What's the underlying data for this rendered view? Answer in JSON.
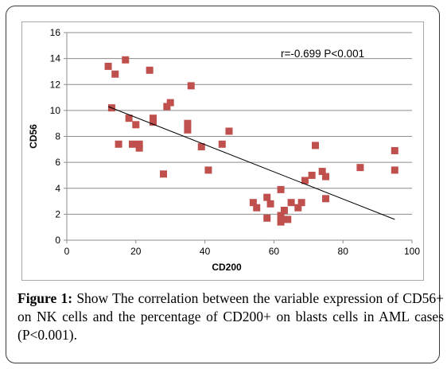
{
  "figure": {
    "caption_label": "Figure 1:",
    "caption_text": "Show The correlation between the variable expression of CD56+ on NK cells and the percentage of CD200+ on blasts cells in AML cases (P<0.001)."
  },
  "chart_data": {
    "type": "scatter",
    "xlabel": "CD200",
    "ylabel": "CD56",
    "xlim": [
      0,
      100
    ],
    "ylim": [
      0,
      16
    ],
    "x_ticks": [
      0,
      20,
      40,
      60,
      80,
      100
    ],
    "y_ticks": [
      0,
      2,
      4,
      6,
      8,
      10,
      12,
      14,
      16
    ],
    "grid": "horizontal",
    "annotation": "r=-0.699  P<0.001",
    "marker_color": "#c0504d",
    "trendline_color": "#000000",
    "trendline": {
      "x": [
        12,
        95
      ],
      "y": [
        10.3,
        1.6
      ]
    },
    "points": [
      {
        "x": 12,
        "y": 13.4
      },
      {
        "x": 13,
        "y": 10.2
      },
      {
        "x": 14,
        "y": 12.8
      },
      {
        "x": 15,
        "y": 7.4
      },
      {
        "x": 17,
        "y": 13.9
      },
      {
        "x": 18,
        "y": 9.4
      },
      {
        "x": 19,
        "y": 7.4
      },
      {
        "x": 20,
        "y": 8.9
      },
      {
        "x": 21,
        "y": 7.4
      },
      {
        "x": 21,
        "y": 7.1
      },
      {
        "x": 24,
        "y": 13.1
      },
      {
        "x": 25,
        "y": 9.4
      },
      {
        "x": 25,
        "y": 9.1
      },
      {
        "x": 28,
        "y": 5.1
      },
      {
        "x": 29,
        "y": 10.3
      },
      {
        "x": 30,
        "y": 10.6
      },
      {
        "x": 35,
        "y": 9.0
      },
      {
        "x": 35,
        "y": 8.5
      },
      {
        "x": 36,
        "y": 11.9
      },
      {
        "x": 39,
        "y": 7.2
      },
      {
        "x": 41,
        "y": 5.4
      },
      {
        "x": 45,
        "y": 7.4
      },
      {
        "x": 47,
        "y": 8.4
      },
      {
        "x": 54,
        "y": 2.9
      },
      {
        "x": 55,
        "y": 2.5
      },
      {
        "x": 58,
        "y": 3.3
      },
      {
        "x": 58,
        "y": 1.7
      },
      {
        "x": 59,
        "y": 2.8
      },
      {
        "x": 62,
        "y": 3.9
      },
      {
        "x": 62,
        "y": 1.9
      },
      {
        "x": 62,
        "y": 1.4
      },
      {
        "x": 63,
        "y": 2.3
      },
      {
        "x": 64,
        "y": 1.6
      },
      {
        "x": 65,
        "y": 2.9
      },
      {
        "x": 67,
        "y": 2.5
      },
      {
        "x": 68,
        "y": 2.9
      },
      {
        "x": 69,
        "y": 4.6
      },
      {
        "x": 71,
        "y": 5.0
      },
      {
        "x": 72,
        "y": 7.3
      },
      {
        "x": 74,
        "y": 5.3
      },
      {
        "x": 75,
        "y": 4.9
      },
      {
        "x": 75,
        "y": 3.2
      },
      {
        "x": 85,
        "y": 5.6
      },
      {
        "x": 95,
        "y": 6.9
      },
      {
        "x": 95,
        "y": 5.4
      }
    ]
  }
}
